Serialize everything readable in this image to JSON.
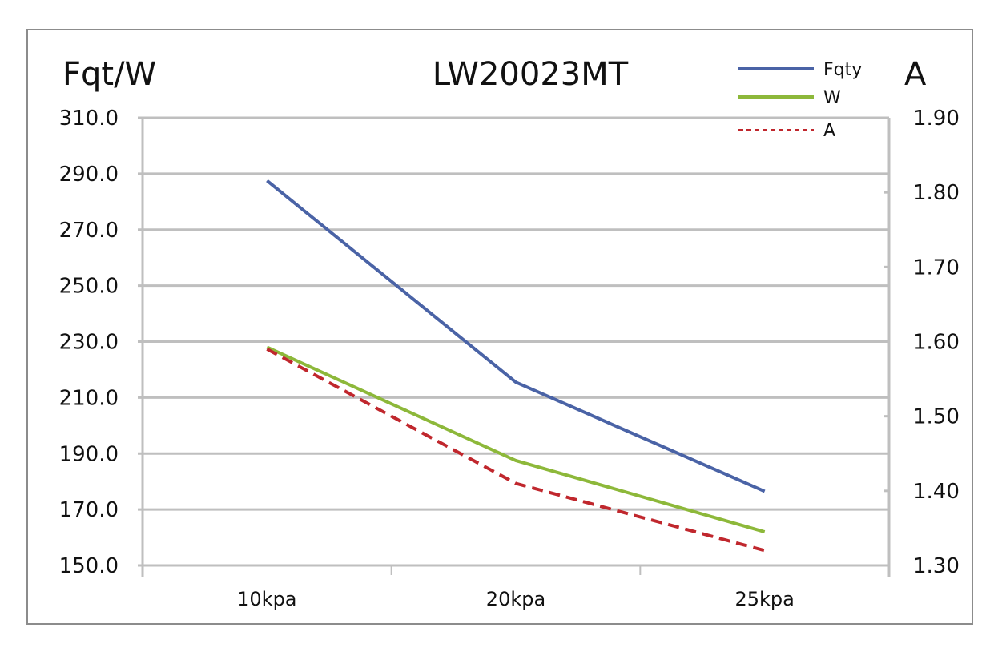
{
  "chart_data": {
    "type": "line",
    "title": "LW20023MT",
    "ylabel_left": "Fqt/W",
    "ylabel_right": "A",
    "categories": [
      "10kpa",
      "20kpa",
      "25kpa"
    ],
    "y_left": {
      "range": [
        150,
        310
      ],
      "ticks": [
        "150.0",
        "170.0",
        "190.0",
        "210.0",
        "230.0",
        "250.0",
        "270.0",
        "290.0",
        "310.0"
      ]
    },
    "y_right": {
      "range": [
        1.3,
        1.9
      ],
      "ticks": [
        "1.30",
        "1.40",
        "1.50",
        "1.60",
        "1.70",
        "1.80",
        "1.90"
      ]
    },
    "grid": true,
    "legend_position": "top-right",
    "series": [
      {
        "name": "Fqty",
        "axis": "left",
        "color": "#4a63a6",
        "dash": false,
        "values": [
          287.5,
          215.5,
          176.5
        ]
      },
      {
        "name": "W",
        "axis": "left",
        "color": "#8db83a",
        "dash": false,
        "values": [
          228.0,
          187.5,
          162.0
        ]
      },
      {
        "name": "A",
        "axis": "right",
        "color": "#c0272d",
        "dash": true,
        "values": [
          1.59,
          1.41,
          1.32
        ]
      }
    ]
  }
}
